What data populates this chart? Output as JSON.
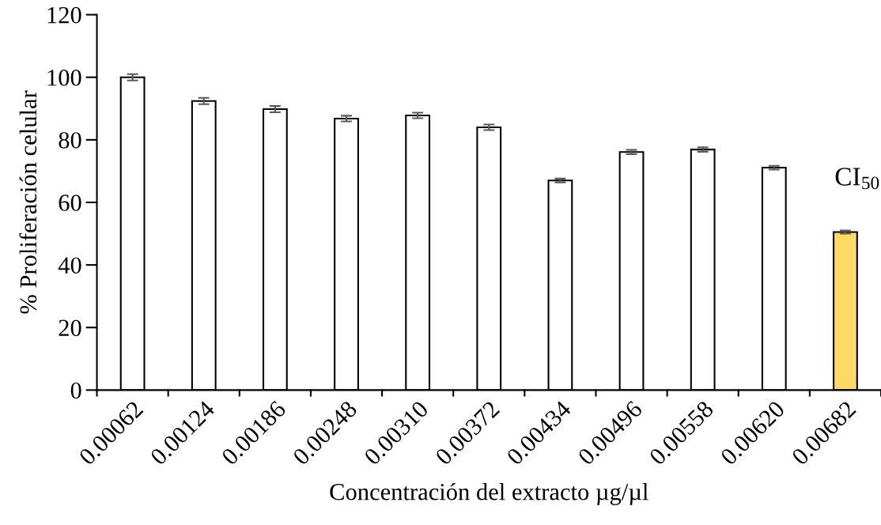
{
  "chart_data": {
    "type": "bar",
    "categories": [
      "0.00062",
      "0.00124",
      "0.00186",
      "0.00248",
      "0.00310",
      "0.00372",
      "0.00434",
      "0.00496",
      "0.00558",
      "0.00620",
      "0.00682"
    ],
    "values": [
      100,
      92.4,
      89.8,
      86.8,
      87.8,
      84.0,
      67.0,
      76.1,
      76.9,
      71.1,
      50.5
    ],
    "errors": [
      1,
      1,
      1,
      0.9,
      0.9,
      0.9,
      0.6,
      0.7,
      0.7,
      0.6,
      0.5
    ],
    "colors": [
      "#ffffff",
      "#ffffff",
      "#ffffff",
      "#ffffff",
      "#ffffff",
      "#ffffff",
      "#ffffff",
      "#ffffff",
      "#ffffff",
      "#ffffff",
      "#ffd966"
    ],
    "xlabel": "Concentración del extracto µg/µl",
    "ylabel": "% Proliferación celular",
    "ylim": [
      0,
      120
    ],
    "yticks": [
      0,
      20,
      40,
      60,
      80,
      100,
      120
    ],
    "annotations": [
      "CI$_{50}$"
    ],
    "grid": false,
    "legend": false
  }
}
